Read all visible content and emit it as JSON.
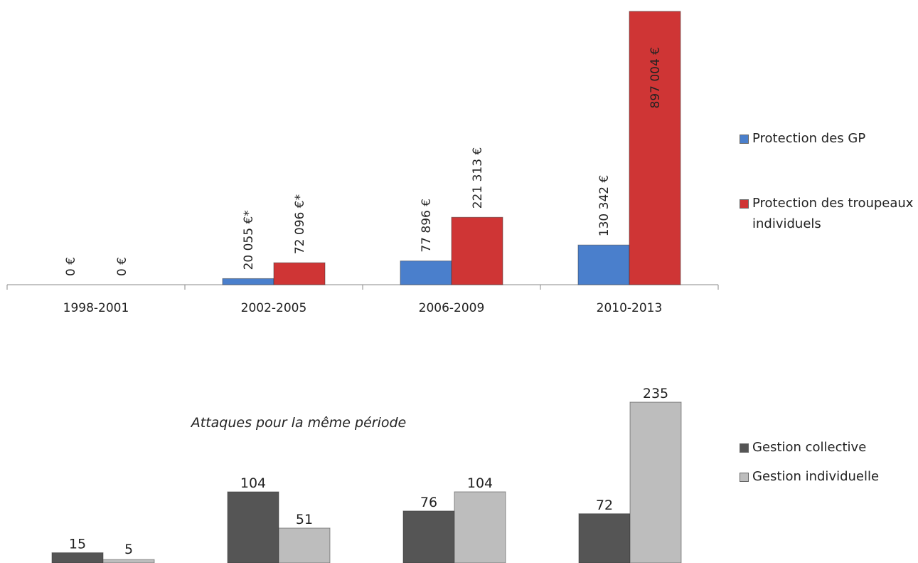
{
  "chart_data": [
    {
      "type": "bar",
      "categories": [
        "1998-2001",
        "2002-2005",
        "2006-2009",
        "2010-2013"
      ],
      "series": [
        {
          "name": "Protection des GP",
          "color": "#4a7fcc",
          "values": [
            0,
            20055,
            77896,
            130342
          ],
          "value_labels": [
            "0 €",
            "20 055 €*",
            "77 896 €",
            "130 342 €"
          ]
        },
        {
          "name": "Protection des troupeaux individuels",
          "color": "#cf3535",
          "values": [
            0,
            72096,
            221313,
            897004
          ],
          "value_labels": [
            "0 €",
            "72 096 €*",
            "221 313 €",
            "897 004 €"
          ]
        }
      ]
    },
    {
      "type": "bar",
      "title": "Attaques pour la même période",
      "series": [
        {
          "name": "Gestion collective",
          "color": "#555555",
          "values": [
            15,
            104,
            76,
            72
          ]
        },
        {
          "name": "Gestion individuelle",
          "color": "#bdbdbd",
          "values": [
            5,
            51,
            104,
            235
          ]
        }
      ]
    }
  ]
}
